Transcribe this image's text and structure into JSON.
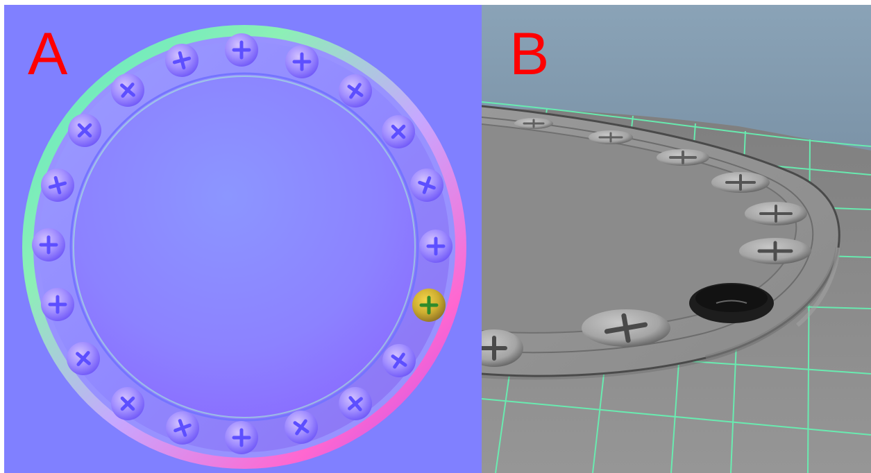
{
  "figure": {
    "panel_a": {
      "label": "A",
      "label_color": "#ff0000",
      "background_color": "#8080ff",
      "highlight_color": "#c6a53a"
    },
    "panel_b": {
      "label": "B",
      "label_color": "#ff0000",
      "sky_color": "#8aa1b6",
      "floor_color": "#8f8f8f",
      "grid_color": "#6ef0b0"
    }
  }
}
